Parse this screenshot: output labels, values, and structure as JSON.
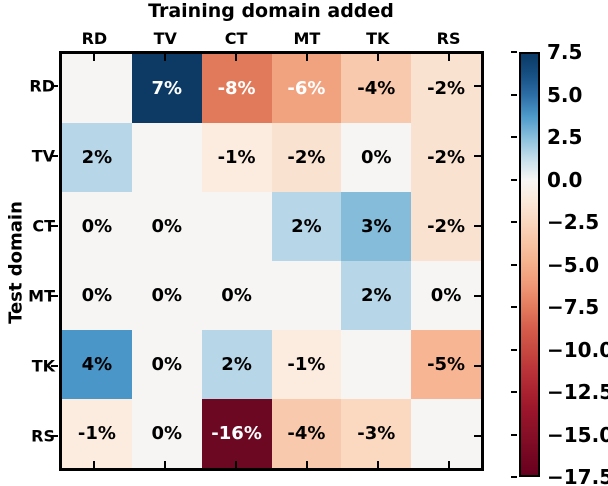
{
  "title": "Training domain added",
  "ylabel": "Test domain",
  "chart_data": {
    "type": "heatmap",
    "title": "Training domain added",
    "xlabel_implicit_columns": "Training domain added",
    "ylabel": "Test domain",
    "columns": [
      "RD",
      "TV",
      "CT",
      "MT",
      "TK",
      "RS"
    ],
    "rows": [
      "RD",
      "TV",
      "CT",
      "MT",
      "TK",
      "RS"
    ],
    "values": [
      [
        null,
        7,
        -8,
        -6,
        -4,
        -2
      ],
      [
        2,
        null,
        -1,
        -2,
        0,
        -2
      ],
      [
        0,
        0,
        null,
        2,
        3,
        -2
      ],
      [
        0,
        0,
        0,
        null,
        2,
        0
      ],
      [
        4,
        0,
        2,
        -1,
        null,
        -5
      ],
      [
        -1,
        0,
        -16,
        -4,
        -3,
        null
      ]
    ],
    "value_suffix": "%",
    "empty_color": "#f6f5f3",
    "value_colors": {
      "7": "#0c3a65",
      "4": "#4a96c8",
      "3": "#85bcd9",
      "2": "#b7d7e8",
      "0": "#f6f5f3",
      "-1": "#fcebdf",
      "-2": "#fae2d1",
      "-3": "#fbd8c0",
      "-4": "#f8c9ac",
      "-5": "#f7b594",
      "-6": "#f1a27f",
      "-8": "#e07a5a",
      "-16": "#6d0823"
    },
    "white_text_values": [
      7,
      -6,
      -8,
      -16
    ],
    "black_text_color": "#000000",
    "white_text_color": "#ffffff",
    "colorbar": {
      "vmax": 7.5,
      "vmin": -17.5,
      "tick_labels": [
        "7.5",
        "5.0",
        "2.5",
        "0.0",
        "−2.5",
        "−5.0",
        "−7.5",
        "−10.0",
        "−12.5",
        "−15.0",
        "−17.5"
      ],
      "gradient_stops": [
        {
          "pos": 0,
          "color": "#0b3a66"
        },
        {
          "pos": 5,
          "color": "#175083"
        },
        {
          "pos": 10,
          "color": "#2e6fa8"
        },
        {
          "pos": 15,
          "color": "#4f9bcb"
        },
        {
          "pos": 20,
          "color": "#8bc0dc"
        },
        {
          "pos": 25,
          "color": "#c6dfec"
        },
        {
          "pos": 30,
          "color": "#f7f6f4"
        },
        {
          "pos": 35,
          "color": "#fbe9da"
        },
        {
          "pos": 40,
          "color": "#fad7bf"
        },
        {
          "pos": 45,
          "color": "#f8c4a4"
        },
        {
          "pos": 50,
          "color": "#f5b08b"
        },
        {
          "pos": 55,
          "color": "#ef9877"
        },
        {
          "pos": 60,
          "color": "#e47c5e"
        },
        {
          "pos": 65,
          "color": "#d65e4c"
        },
        {
          "pos": 70,
          "color": "#c84a41"
        },
        {
          "pos": 75,
          "color": "#bb3439"
        },
        {
          "pos": 80,
          "color": "#ab2330"
        },
        {
          "pos": 85,
          "color": "#9a152b"
        },
        {
          "pos": 90,
          "color": "#871027"
        },
        {
          "pos": 95,
          "color": "#770722"
        },
        {
          "pos": 100,
          "color": "#67001f"
        }
      ]
    }
  }
}
